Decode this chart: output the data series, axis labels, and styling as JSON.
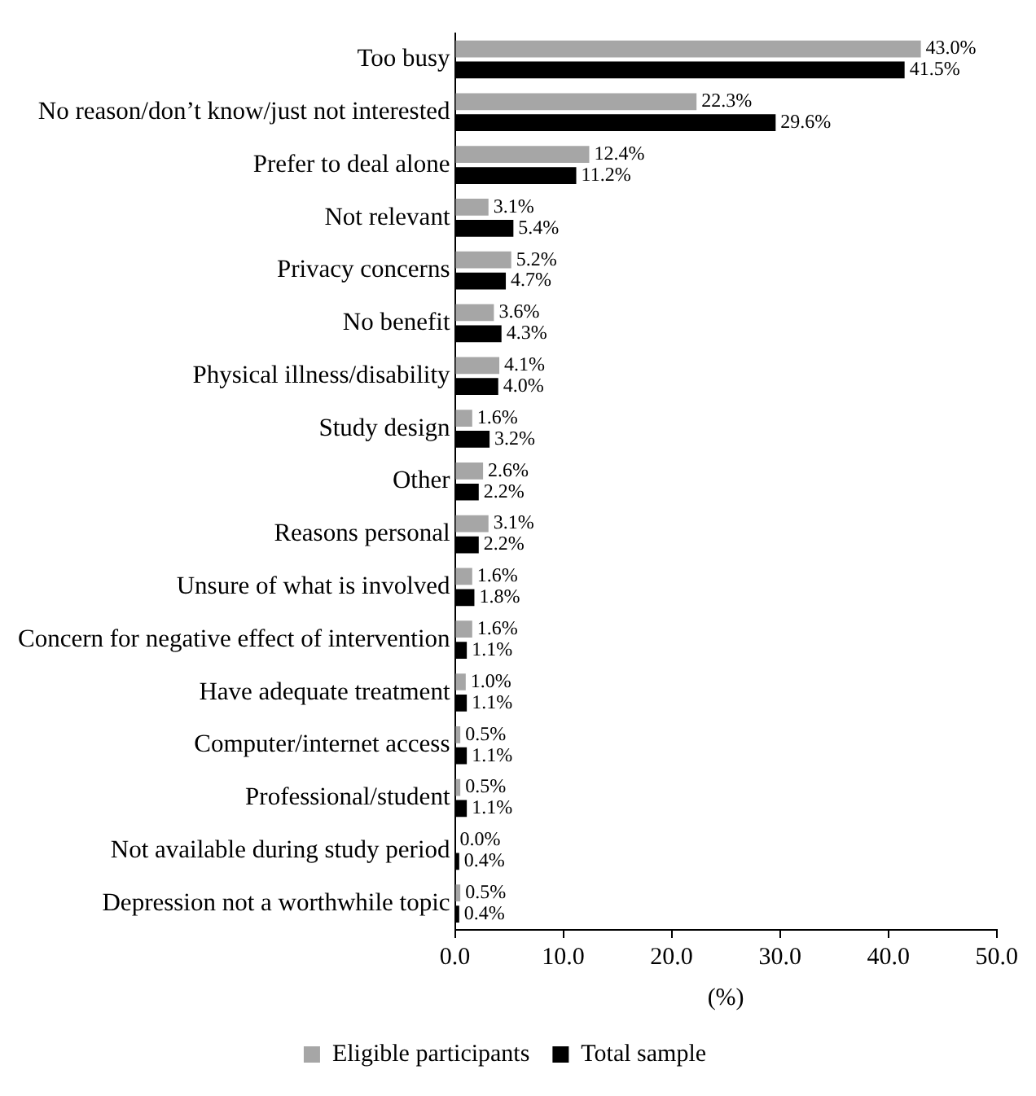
{
  "chart_data": {
    "type": "bar",
    "orientation": "horizontal",
    "xlabel": "(%)",
    "categories": [
      "Too busy",
      "No reason/don’t know/just not interested",
      "Prefer to deal alone",
      "Not relevant",
      "Privacy concerns",
      "No benefit",
      "Physical illness/disability",
      "Study design",
      "Other",
      "Reasons personal",
      "Unsure of what is involved",
      "Concern for negative effect of intervention",
      "Have adequate treatment",
      "Computer/internet access",
      "Professional/student",
      "Not available during study period",
      "Depression not a worthwhile topic"
    ],
    "series": [
      {
        "name": "Eligible participants",
        "color": "#a6a6a6",
        "values": [
          43.0,
          22.3,
          12.4,
          3.1,
          5.2,
          3.6,
          4.1,
          1.6,
          2.6,
          3.1,
          1.6,
          1.6,
          1.0,
          0.5,
          0.5,
          0.0,
          0.5
        ],
        "value_labels": [
          "43.0%",
          "22.3%",
          "12.4%",
          "3.1%",
          "5.2%",
          "3.6%",
          "4.1%",
          "1.6%",
          "2.6%",
          "3.1%",
          "1.6%",
          "1.6%",
          "1.0%",
          "0.5%",
          "0.5%",
          "0.0%",
          "0.5%"
        ]
      },
      {
        "name": "Total sample",
        "color": "#000000",
        "values": [
          41.5,
          29.6,
          11.2,
          5.4,
          4.7,
          4.3,
          4.0,
          3.2,
          2.2,
          2.2,
          1.8,
          1.1,
          1.1,
          1.1,
          1.1,
          0.4,
          0.4
        ],
        "value_labels": [
          "41.5%",
          "29.6%",
          "11.2%",
          "5.4%",
          "4.7%",
          "4.3%",
          "4.0%",
          "3.2%",
          "2.2%",
          "2.2%",
          "1.8%",
          "1.1%",
          "1.1%",
          "1.1%",
          "1.1%",
          "0.4%",
          "0.4%"
        ]
      }
    ],
    "xlim": [
      0,
      50
    ],
    "xticks": [
      {
        "value": 0,
        "label": "0.0"
      },
      {
        "value": 10,
        "label": "10.0"
      },
      {
        "value": 20,
        "label": "20.0"
      },
      {
        "value": 30,
        "label": "30.0"
      },
      {
        "value": 40,
        "label": "40.0"
      },
      {
        "value": 50,
        "label": "50.0"
      }
    ],
    "grid": false,
    "legend": "bottom"
  }
}
